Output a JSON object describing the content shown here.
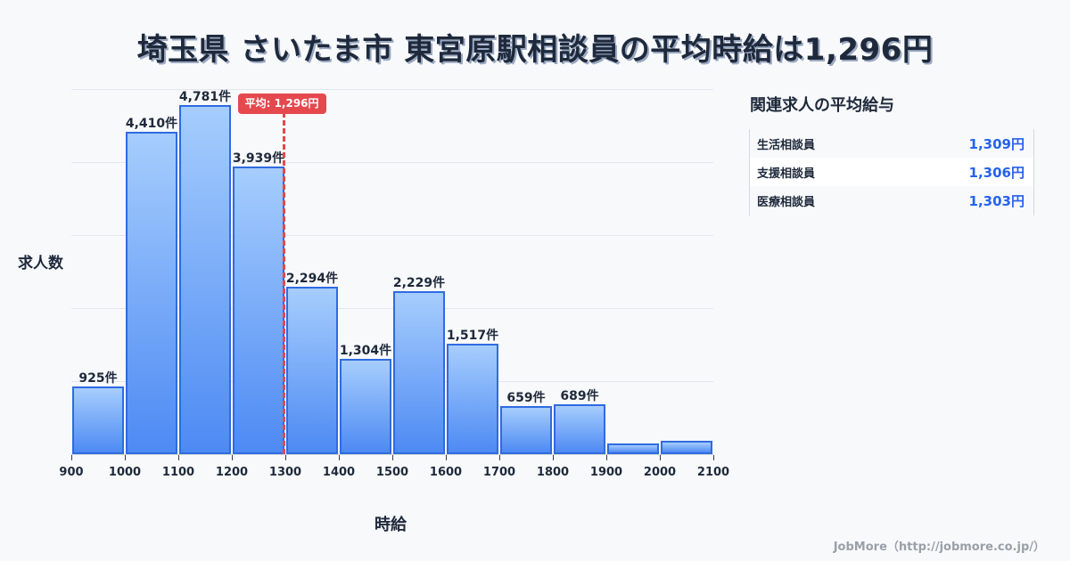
{
  "header": {
    "title": "埼玉県 さいたま市 東宮原駅相談員の平均時給は1,296円"
  },
  "chart_data": {
    "type": "bar",
    "title": "埼玉県 さいたま市 東宮原駅相談員の平均時給は1,296円",
    "xlabel": "時給",
    "ylabel": "求人数",
    "bin_edges": [
      900,
      1000,
      1100,
      1200,
      1300,
      1400,
      1500,
      1600,
      1700,
      1800,
      1900,
      2000,
      2100
    ],
    "categories": [
      "900-1000",
      "1000-1100",
      "1100-1200",
      "1200-1300",
      "1300-1400",
      "1400-1500",
      "1500-1600",
      "1600-1700",
      "1700-1800",
      "1800-1900",
      "1900-2000",
      "2000-2100"
    ],
    "values": [
      925,
      4410,
      4781,
      3939,
      2294,
      1304,
      2229,
      1517,
      659,
      689,
      145,
      185
    ],
    "value_labels": [
      "925件",
      "4,410件",
      "4,781件",
      "3,939件",
      "2,294件",
      "1,304件",
      "2,229件",
      "1,517件",
      "659件",
      "689件",
      "",
      ""
    ],
    "ylim": [
      0,
      5000
    ],
    "grid": true,
    "y_gridlines": [
      1000,
      2000,
      3000,
      4000,
      5000
    ],
    "x_tick_labels": [
      "900",
      "1000",
      "1100",
      "1200",
      "1300",
      "1400",
      "1500",
      "1600",
      "1700",
      "1800",
      "1900",
      "2000",
      "2100"
    ],
    "annotations": [
      {
        "type": "vline",
        "x": 1296,
        "label": "平均: 1,296円",
        "color": "#e5484d",
        "style": "dashed"
      }
    ],
    "bar_color": "#4d8af3",
    "bar_border_color": "#2f6be0"
  },
  "chart": {
    "ylabel": "求人数",
    "xlabel": "時給",
    "mean_label": "平均: 1,296円"
  },
  "side_panel": {
    "title": "関連求人の平均給与",
    "items": [
      {
        "name": "生活相談員",
        "value": "1,309円"
      },
      {
        "name": "支援相談員",
        "value": "1,306円"
      },
      {
        "name": "医療相談員",
        "value": "1,303円"
      }
    ]
  },
  "footer": {
    "credit": "JobMore（http://jobmore.co.jp/）"
  },
  "colors": {
    "accent": "#2563eb",
    "mean_line": "#e5484d",
    "bar_top": "#a6cdfd",
    "bar_bottom": "#4d8af3",
    "bar_border": "#2f6be0",
    "background": "#f8f9fb",
    "text": "#1e293b"
  }
}
